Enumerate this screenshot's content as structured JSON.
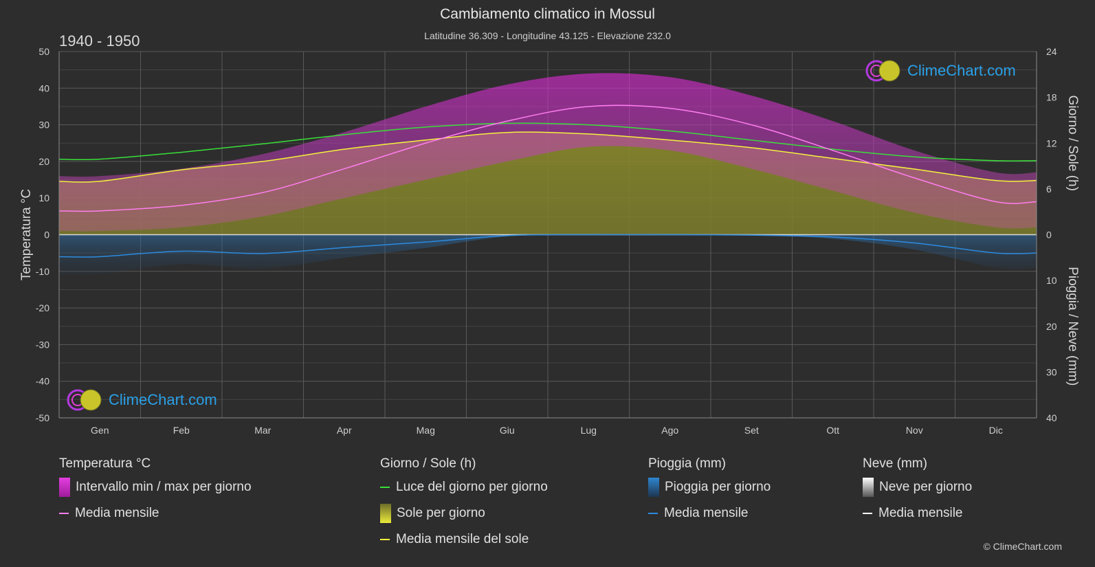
{
  "header": {
    "title": "Cambiamento climatico in Mossul",
    "subtitle": "Latitudine 36.309 - Longitudine 43.125 - Elevazione 232.0",
    "period": "1940 - 1950"
  },
  "axes": {
    "left_label": "Temperatura °C",
    "right_top_label": "Giorno / Sole (h)",
    "right_bottom_label": "Pioggia / Neve (mm)",
    "left_ticks": [
      "50",
      "40",
      "30",
      "20",
      "10",
      "0",
      "-10",
      "-20",
      "-30",
      "-40",
      "-50"
    ],
    "right_top_ticks": [
      "24",
      "18",
      "12",
      "6",
      "0"
    ],
    "right_bottom_ticks": [
      "10",
      "20",
      "30",
      "40"
    ]
  },
  "logo": {
    "text": "ClimeChart.com"
  },
  "copyright": "© ClimeChart.com",
  "legend": {
    "temperature": {
      "title": "Temperatura °C",
      "items": [
        "Intervallo min / max per giorno",
        "Media mensile"
      ]
    },
    "sun": {
      "title": "Giorno / Sole (h)",
      "items": [
        "Luce del giorno per giorno",
        "Sole per giorno",
        "Media mensile del sole"
      ]
    },
    "rain": {
      "title": "Pioggia (mm)",
      "items": [
        "Pioggia per giorno",
        "Media mensile"
      ]
    },
    "snow": {
      "title": "Neve (mm)",
      "items": [
        "Neve per giorno",
        "Media mensile"
      ]
    }
  },
  "colors": {
    "background": "#2d2d2d",
    "temp_range": "#d126c8",
    "temp_mean": "#ff7ef0",
    "daylight": "#39e039",
    "sunshine": "#8e8e2e",
    "sun_mean": "#f3f33a",
    "rain": "#2f86d1",
    "rain_mean": "#2c8be0",
    "snow": "#ffffff",
    "logo_text": "#2aa1e8"
  },
  "chart_data": {
    "type": "area",
    "categories": [
      "Gen",
      "Feb",
      "Mar",
      "Apr",
      "Mag",
      "Giu",
      "Lug",
      "Ago",
      "Set",
      "Ott",
      "Nov",
      "Dic"
    ],
    "temperature_axis": {
      "unit": "°C",
      "ylim": [
        -50,
        50
      ]
    },
    "sun_axis": {
      "unit": "h",
      "ylim": [
        0,
        24
      ]
    },
    "precip_axis": {
      "unit": "mm",
      "ylim": [
        0,
        40
      ],
      "direction": "down"
    },
    "grid": true,
    "series": [
      {
        "name": "Intervallo min / max per giorno",
        "axis": "temperature",
        "kind": "range",
        "min": [
          1,
          2,
          5,
          10,
          15,
          20,
          24,
          23,
          18,
          12,
          6,
          2
        ],
        "max": [
          16,
          18,
          22,
          28,
          35,
          41,
          44,
          43,
          38,
          31,
          23,
          17
        ]
      },
      {
        "name": "Media mensile",
        "axis": "temperature",
        "kind": "line",
        "values": [
          6.5,
          8,
          11.5,
          18,
          25,
          31,
          35,
          34.5,
          30,
          23,
          15.5,
          9
        ]
      },
      {
        "name": "Luce del giorno per giorno",
        "axis": "sun",
        "kind": "line",
        "values": [
          9.9,
          10.8,
          11.9,
          13.1,
          14.1,
          14.6,
          14.4,
          13.6,
          12.4,
          11.2,
          10.2,
          9.7
        ]
      },
      {
        "name": "Sole per giorno",
        "axis": "sun",
        "kind": "area",
        "values": [
          7,
          8.5,
          9.6,
          11.2,
          12.4,
          13.4,
          13.2,
          12.4,
          11.4,
          10,
          8.6,
          7.1
        ]
      },
      {
        "name": "Media mensile del sole",
        "axis": "sun",
        "kind": "line",
        "values": [
          7,
          8.5,
          9.6,
          11.2,
          12.4,
          13.4,
          13.2,
          12.4,
          11.4,
          10,
          8.6,
          7.1
        ]
      },
      {
        "name": "Media mensile",
        "axis": "precip",
        "kind": "line",
        "values": [
          4.8,
          3.6,
          4.1,
          2.8,
          1.6,
          0.2,
          0,
          0,
          0.1,
          0.5,
          1.8,
          4
        ]
      }
    ]
  }
}
